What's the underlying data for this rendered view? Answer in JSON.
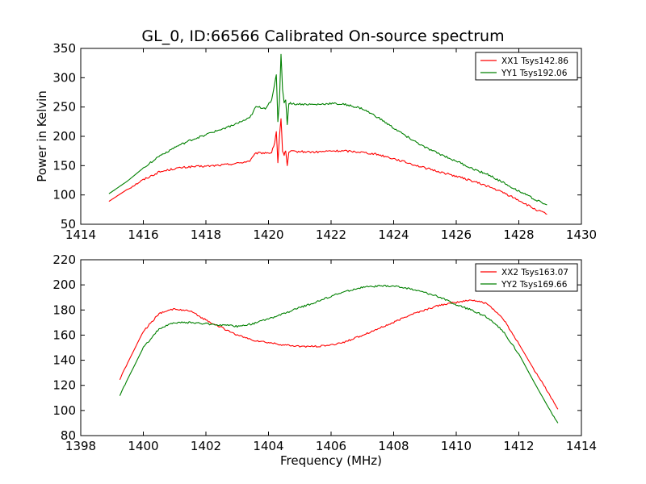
{
  "figure": {
    "title": "GL_0, ID:66566 Calibrated On-source spectrum",
    "xlabel": "Frequency (MHz)",
    "ylabel": "Power in Kelvin"
  },
  "chart_data": [
    {
      "type": "line",
      "xlim": [
        1414,
        1430
      ],
      "ylim": [
        50,
        350
      ],
      "xticks": [
        1414,
        1416,
        1418,
        1420,
        1422,
        1424,
        1426,
        1428,
        1430
      ],
      "yticks": [
        50,
        100,
        150,
        200,
        250,
        300,
        350
      ],
      "ylabel": "Power in Kelvin",
      "legend_position": "top-right",
      "series": [
        {
          "name": "XX1 Tsys142.86",
          "color": "#ff0000",
          "x": [
            1414.9,
            1415.5,
            1416,
            1416.5,
            1417,
            1417.5,
            1418,
            1418.5,
            1419,
            1419.4,
            1419.6,
            1419.9,
            1420.1,
            1420.2,
            1420.25,
            1420.3,
            1420.35,
            1420.4,
            1420.45,
            1420.5,
            1420.55,
            1420.6,
            1420.65,
            1420.7,
            1420.8,
            1421,
            1421.5,
            1422,
            1422.5,
            1423,
            1423.5,
            1424,
            1424.5,
            1425,
            1425.5,
            1426,
            1426.5,
            1427,
            1427.5,
            1428,
            1428.5,
            1428.9
          ],
          "y": [
            89,
            110,
            126,
            139,
            145,
            148,
            149,
            151,
            154,
            158,
            171,
            172,
            172,
            190,
            208,
            155,
            200,
            230,
            175,
            168,
            175,
            150,
            172,
            174,
            174,
            174,
            173,
            175,
            175,
            173,
            169,
            162,
            154,
            146,
            139,
            132,
            124,
            115,
            104,
            91,
            76,
            67
          ]
        },
        {
          "name": "YY1 Tsys192.06",
          "color": "#008000",
          "x": [
            1414.9,
            1415.5,
            1416,
            1416.5,
            1417,
            1417.5,
            1418,
            1418.5,
            1419,
            1419.4,
            1419.6,
            1419.9,
            1420.1,
            1420.2,
            1420.25,
            1420.3,
            1420.35,
            1420.4,
            1420.45,
            1420.5,
            1420.55,
            1420.6,
            1420.65,
            1420.7,
            1420.8,
            1421,
            1421.5,
            1422,
            1422.5,
            1423,
            1423.5,
            1424,
            1424.5,
            1425,
            1425.5,
            1426,
            1426.5,
            1427,
            1427.5,
            1428,
            1428.5,
            1428.9
          ],
          "y": [
            102,
            124,
            146,
            166,
            181,
            193,
            203,
            212,
            222,
            231,
            250,
            248,
            262,
            290,
            305,
            225,
            260,
            340,
            280,
            258,
            262,
            220,
            256,
            257,
            255,
            255,
            254,
            256,
            254,
            247,
            232,
            214,
            197,
            181,
            169,
            158,
            145,
            135,
            121,
            107,
            93,
            83
          ]
        }
      ]
    },
    {
      "type": "line",
      "xlim": [
        1398,
        1414
      ],
      "ylim": [
        80,
        220
      ],
      "xticks": [
        1398,
        1400,
        1402,
        1404,
        1406,
        1408,
        1410,
        1412,
        1414
      ],
      "yticks": [
        80,
        100,
        120,
        140,
        160,
        180,
        200,
        220
      ],
      "xlabel": "Frequency (MHz)",
      "legend_position": "top-right",
      "series": [
        {
          "name": "XX2 Tsys163.07",
          "color": "#ff0000",
          "x": [
            1399.25,
            1399.5,
            1400,
            1400.5,
            1401,
            1401.5,
            1402,
            1402.5,
            1403,
            1403.5,
            1404,
            1404.5,
            1405,
            1405.5,
            1406,
            1406.5,
            1407,
            1407.5,
            1408,
            1408.5,
            1409,
            1409.5,
            1410,
            1410.5,
            1411,
            1411.5,
            1412,
            1412.5,
            1413,
            1413.25
          ],
          "y": [
            125,
            138,
            163,
            177,
            181,
            179,
            172,
            166,
            160,
            156,
            154,
            152,
            151,
            151,
            152,
            155,
            160,
            165,
            170,
            176,
            180,
            184,
            186,
            188,
            185,
            173,
            153,
            132,
            112,
            101
          ]
        },
        {
          "name": "YY2 Tsys169.66",
          "color": "#008000",
          "x": [
            1399.25,
            1399.5,
            1400,
            1400.5,
            1401,
            1401.5,
            1402,
            1402.5,
            1403,
            1403.5,
            1404,
            1404.5,
            1405,
            1405.5,
            1406,
            1406.5,
            1407,
            1407.5,
            1408,
            1408.5,
            1409,
            1409.5,
            1410,
            1410.5,
            1411,
            1411.5,
            1412,
            1412.5,
            1413,
            1413.25
          ],
          "y": [
            112,
            125,
            150,
            165,
            170,
            170,
            169,
            168,
            167,
            169,
            173,
            177,
            182,
            186,
            191,
            195,
            198,
            199,
            199,
            197,
            194,
            190,
            184,
            180,
            174,
            163,
            145,
            122,
            100,
            90
          ]
        }
      ]
    }
  ]
}
